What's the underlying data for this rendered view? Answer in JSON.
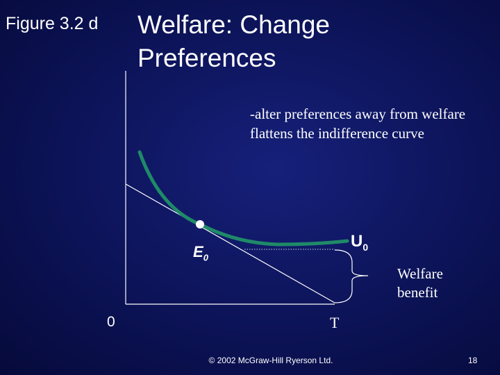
{
  "slide": {
    "figure_label": "Figure 3.2 d",
    "title_line1": "Welfare: Change",
    "title_line2": "Preferences",
    "annotation_line1": "-alter preferences away from welfare",
    "annotation_line2": "flattens the indifference curve",
    "welfare_line1": "Welfare",
    "welfare_line2": "benefit",
    "origin": "0",
    "t_label": "T",
    "e_label": "E",
    "e_sub": "0",
    "u_label": "U",
    "u_sub": "0",
    "copyright": "© 2002 McGraw-Hill Ryerson Ltd.",
    "page_number": "18"
  },
  "colors": {
    "background": "#0c1357",
    "curve": "#1f8a68",
    "lines": "#ffffff"
  }
}
